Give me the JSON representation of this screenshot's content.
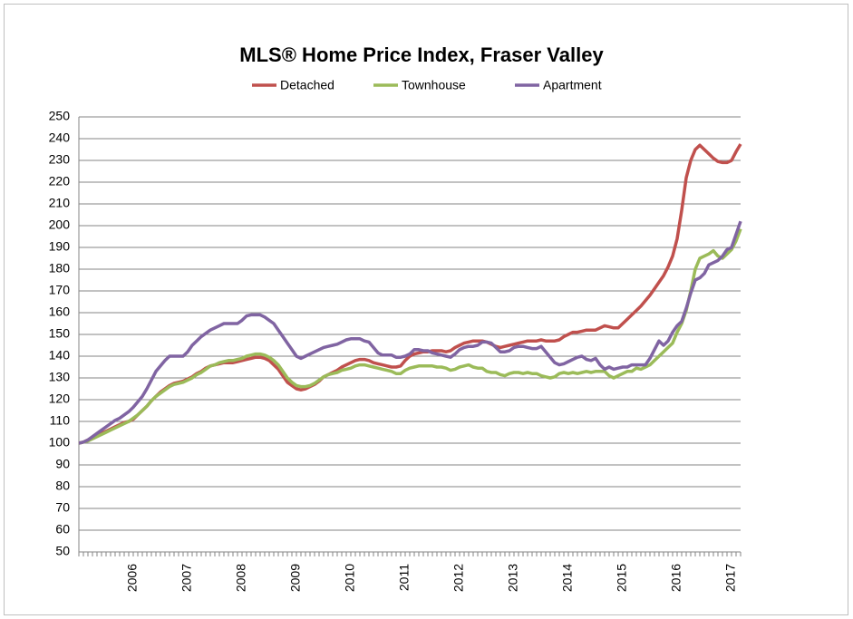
{
  "chart_data": {
    "type": "line",
    "title": "MLS® Home Price Index, Fraser Valley",
    "categories": [
      null,
      null,
      null,
      null,
      null,
      null,
      null,
      null,
      null,
      null,
      null,
      null,
      "2006",
      null,
      null,
      null,
      null,
      null,
      null,
      null,
      null,
      null,
      null,
      null,
      "2007",
      null,
      null,
      null,
      null,
      null,
      null,
      null,
      null,
      null,
      null,
      null,
      "2008",
      null,
      null,
      null,
      null,
      null,
      null,
      null,
      null,
      null,
      null,
      null,
      "2009",
      null,
      null,
      null,
      null,
      null,
      null,
      null,
      null,
      null,
      null,
      null,
      "2010",
      null,
      null,
      null,
      null,
      null,
      null,
      null,
      null,
      null,
      null,
      null,
      "2011",
      null,
      null,
      null,
      null,
      null,
      null,
      null,
      null,
      null,
      null,
      null,
      "2012",
      null,
      null,
      null,
      null,
      null,
      null,
      null,
      null,
      null,
      null,
      null,
      "2013",
      null,
      null,
      null,
      null,
      null,
      null,
      null,
      null,
      null,
      null,
      null,
      "2014",
      null,
      null,
      null,
      null,
      null,
      null,
      null,
      null,
      null,
      null,
      null,
      "2015",
      null,
      null,
      null,
      null,
      null,
      null,
      null,
      null,
      null,
      null,
      null,
      "2016",
      null,
      null,
      null,
      null,
      null,
      null,
      null,
      null,
      null,
      null,
      null,
      "2017",
      null,
      null
    ],
    "series": [
      {
        "name": "Detached",
        "color": "#c0504d",
        "values": [
          100,
          100.5,
          101.5,
          102.5,
          103.5,
          104.5,
          105.5,
          106.5,
          107.5,
          108.5,
          109.5,
          110,
          111,
          113,
          115,
          117,
          119.5,
          121.5,
          123.5,
          125,
          126.5,
          127.5,
          128,
          128.5,
          129.5,
          130.5,
          132,
          133,
          134.5,
          135.5,
          136,
          136.5,
          137,
          137,
          137,
          137.5,
          138,
          138.5,
          139,
          139.5,
          139.5,
          139,
          138,
          136,
          134,
          131,
          128,
          126.5,
          125,
          124.5,
          125,
          126,
          127,
          128.5,
          130.5,
          131.5,
          132.5,
          133.5,
          135,
          136,
          137,
          138,
          138.5,
          138.5,
          138,
          137,
          136.5,
          136,
          135.5,
          135,
          135,
          135.5,
          138,
          140,
          141,
          141.5,
          142,
          142,
          142.5,
          142.5,
          142.5,
          142,
          142.5,
          144,
          145,
          146,
          146.5,
          147,
          147,
          147,
          146.5,
          145.5,
          144.5,
          144,
          144.5,
          145,
          145.5,
          146,
          146.5,
          147,
          147,
          147,
          147.5,
          147,
          147,
          147,
          147.5,
          149,
          150,
          151,
          151,
          151.5,
          152,
          152,
          152,
          153,
          154,
          153.5,
          153,
          153,
          155,
          157,
          159,
          161,
          163,
          165.5,
          168,
          171,
          174,
          177,
          181,
          186,
          194,
          207,
          222,
          230,
          235,
          237,
          235,
          233,
          231,
          229.5,
          229,
          229,
          230,
          234,
          237.5
        ]
      },
      {
        "name": "Townhouse",
        "color": "#9bbb59",
        "values": [
          100,
          100.5,
          101,
          102,
          103,
          104,
          105,
          106,
          107,
          108,
          109,
          110,
          111.5,
          113,
          115,
          117,
          119.5,
          121.5,
          123,
          124.5,
          126,
          127,
          127.5,
          128,
          129,
          130,
          131.5,
          132.5,
          134,
          135.5,
          136,
          137,
          137.5,
          138,
          138,
          138.5,
          139,
          140,
          140.5,
          141,
          141,
          140.5,
          139.5,
          138,
          136,
          133,
          130,
          128,
          126.5,
          126,
          126,
          126.5,
          127.5,
          129,
          130.5,
          131.5,
          132,
          132.5,
          133.5,
          134,
          134.5,
          135.5,
          136,
          136,
          135.5,
          135,
          134.5,
          134,
          133.5,
          133,
          132,
          132,
          133.5,
          134.5,
          135,
          135.5,
          135.5,
          135.5,
          135.5,
          135,
          135,
          134.5,
          133.5,
          134,
          135,
          135.5,
          136,
          135,
          134.5,
          134.5,
          133,
          132.5,
          132.5,
          131.5,
          131,
          132,
          132.5,
          132.5,
          132,
          132.5,
          132,
          132,
          131,
          130.5,
          130,
          130.5,
          132,
          132.5,
          132,
          132.5,
          132,
          132.5,
          133,
          132.5,
          133,
          133,
          133,
          131,
          130,
          131,
          132,
          133,
          133,
          134.5,
          134,
          135,
          136,
          138,
          140,
          142,
          144,
          146,
          151,
          155,
          161,
          170,
          180,
          185,
          186,
          187,
          188.5,
          186,
          185,
          187,
          189,
          193,
          198.5
        ]
      },
      {
        "name": "Apartment",
        "color": "#8064a2",
        "values": [
          100,
          100.5,
          101.5,
          103,
          104.5,
          106,
          107.5,
          109,
          110.5,
          111.5,
          113,
          114.5,
          116.5,
          119,
          121.5,
          125,
          129,
          133,
          135.5,
          138,
          140,
          140,
          140,
          140,
          142,
          145,
          147,
          149,
          150.5,
          152,
          153,
          154,
          155,
          155,
          155,
          155,
          156.5,
          158.5,
          159,
          159,
          159,
          158,
          156.5,
          155,
          152,
          149,
          146,
          143,
          140,
          139,
          140,
          141,
          142,
          143,
          144,
          144.5,
          145,
          145.5,
          146.5,
          147.5,
          148,
          148,
          148,
          147,
          146.5,
          144,
          141.5,
          140.5,
          140.5,
          140.5,
          139.5,
          139.5,
          140,
          141,
          143,
          143,
          142.5,
          142.5,
          141.5,
          141,
          140.5,
          140,
          139.5,
          141,
          143,
          144,
          144.5,
          144.5,
          145,
          146.5,
          146.5,
          146,
          144,
          142,
          142,
          142.5,
          144,
          144.5,
          144.5,
          144,
          143.5,
          143.5,
          144.5,
          142,
          139.5,
          137,
          136,
          136.5,
          137.5,
          138.5,
          139.5,
          140,
          138.5,
          138,
          139,
          136,
          134,
          135,
          134,
          134.5,
          135,
          135,
          136,
          136,
          136,
          136,
          139,
          143,
          147,
          145,
          147,
          151,
          154,
          156,
          162,
          169,
          175,
          176,
          178,
          182,
          183,
          184,
          186,
          189,
          190,
          196,
          202
        ]
      }
    ],
    "ylim": [
      50,
      250
    ],
    "yticks": [
      50,
      60,
      70,
      80,
      90,
      100,
      110,
      120,
      130,
      140,
      150,
      160,
      170,
      180,
      190,
      200,
      210,
      220,
      230,
      240,
      250
    ],
    "grid": true
  }
}
